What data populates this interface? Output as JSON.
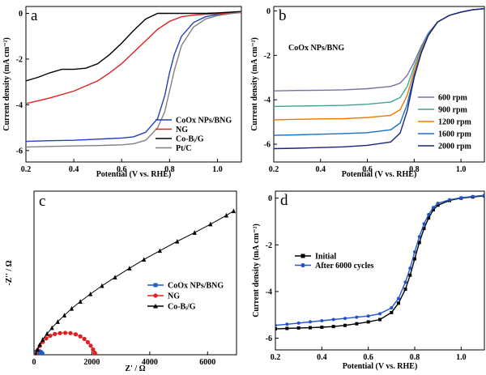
{
  "chart_data": [
    {
      "type": "line",
      "panel_label": "a",
      "xlabel": "Potential (V vs. RHE)",
      "ylabel": "Current density (mA cm⁻²)",
      "xlim": [
        0.2,
        1.1
      ],
      "ylim": [
        -6.5,
        0.3
      ],
      "xticks": [
        0.2,
        0.4,
        0.6,
        0.8,
        1.0
      ],
      "xtick_labels": [
        "0.2",
        "0.4",
        "0.6",
        "0.8",
        "1.0"
      ],
      "yticks": [
        0,
        -2,
        -4,
        -6
      ],
      "ytick_labels": [
        "0",
        "-2",
        "-4",
        "-6"
      ],
      "legend_position": "lower-right",
      "series": [
        {
          "name": "CoOx NPs/BNG",
          "color": "#1f3fbf",
          "x": [
            0.2,
            0.3,
            0.4,
            0.5,
            0.6,
            0.65,
            0.7,
            0.75,
            0.78,
            0.8,
            0.82,
            0.85,
            0.9,
            0.95,
            1.0,
            1.05,
            1.1
          ],
          "y": [
            -5.6,
            -5.57,
            -5.55,
            -5.5,
            -5.45,
            -5.4,
            -5.2,
            -4.6,
            -3.6,
            -2.6,
            -1.8,
            -1.0,
            -0.4,
            -0.15,
            -0.05,
            0.02,
            0.08
          ]
        },
        {
          "name": "NG",
          "color": "#e02020",
          "x": [
            0.2,
            0.3,
            0.4,
            0.5,
            0.55,
            0.6,
            0.65,
            0.7,
            0.75,
            0.8,
            0.85,
            0.9,
            0.95,
            1.0,
            1.05,
            1.1
          ],
          "y": [
            -3.95,
            -3.7,
            -3.4,
            -2.95,
            -2.6,
            -2.2,
            -1.7,
            -1.2,
            -0.7,
            -0.35,
            -0.15,
            -0.08,
            -0.04,
            -0.02,
            0.0,
            0.03
          ]
        },
        {
          "name": "Co-Bᵢ/G",
          "color": "#000000",
          "x": [
            0.2,
            0.25,
            0.3,
            0.35,
            0.4,
            0.45,
            0.5,
            0.55,
            0.6,
            0.65,
            0.7,
            0.75,
            0.8,
            0.85,
            0.9,
            0.95,
            1.0,
            1.05,
            1.1
          ],
          "y": [
            -2.95,
            -2.8,
            -2.6,
            -2.45,
            -2.45,
            -2.4,
            -2.2,
            -1.8,
            -1.3,
            -0.75,
            -0.25,
            0.0,
            0.0,
            0.0,
            0.0,
            0.0,
            0.02,
            0.05,
            0.08
          ]
        },
        {
          "name": "Pt/C",
          "color": "#808080",
          "x": [
            0.2,
            0.3,
            0.4,
            0.5,
            0.6,
            0.65,
            0.7,
            0.75,
            0.78,
            0.8,
            0.82,
            0.85,
            0.9,
            0.95,
            1.0,
            1.05,
            1.1
          ],
          "y": [
            -5.85,
            -5.82,
            -5.8,
            -5.78,
            -5.75,
            -5.7,
            -5.55,
            -5.0,
            -4.3,
            -3.4,
            -2.5,
            -1.4,
            -0.6,
            -0.25,
            -0.1,
            -0.02,
            0.05
          ]
        }
      ]
    },
    {
      "type": "line",
      "panel_label": "b",
      "annotation": "CoOx NPs/BNG",
      "xlabel": "Potential (V vs. RHE)",
      "ylabel": "Current density (mA cm⁻²)",
      "xlim": [
        0.2,
        1.1
      ],
      "ylim": [
        -6.8,
        0.2
      ],
      "xticks": [
        0.2,
        0.4,
        0.6,
        0.8,
        1.0
      ],
      "xtick_labels": [
        "0.2",
        "0.4",
        "0.6",
        "0.8",
        "1.0"
      ],
      "yticks": [
        0,
        -2,
        -4,
        -6
      ],
      "ytick_labels": [
        "0",
        "-2",
        "-4",
        "-6"
      ],
      "legend_position": "lower-right",
      "series": [
        {
          "name": "600 rpm",
          "color": "#7a6fa8",
          "x": [
            0.2,
            0.3,
            0.4,
            0.5,
            0.6,
            0.7,
            0.74,
            0.77,
            0.8,
            0.83,
            0.86,
            0.9,
            0.95,
            1.0,
            1.05,
            1.1
          ],
          "y": [
            -3.6,
            -3.58,
            -3.57,
            -3.55,
            -3.5,
            -3.4,
            -3.25,
            -2.9,
            -2.3,
            -1.6,
            -1.0,
            -0.5,
            -0.2,
            -0.05,
            0.05,
            0.1
          ]
        },
        {
          "name": "900 rpm",
          "color": "#3ea58f",
          "x": [
            0.2,
            0.3,
            0.4,
            0.5,
            0.6,
            0.7,
            0.74,
            0.77,
            0.8,
            0.83,
            0.86,
            0.9,
            0.95,
            1.0,
            1.05,
            1.1
          ],
          "y": [
            -4.3,
            -4.28,
            -4.27,
            -4.25,
            -4.2,
            -4.1,
            -3.9,
            -3.4,
            -2.5,
            -1.7,
            -1.05,
            -0.5,
            -0.2,
            -0.05,
            0.05,
            0.1
          ]
        },
        {
          "name": "1200 rpm",
          "color": "#f07800",
          "x": [
            0.2,
            0.3,
            0.4,
            0.5,
            0.6,
            0.7,
            0.74,
            0.77,
            0.8,
            0.83,
            0.86,
            0.9,
            0.95,
            1.0,
            1.05,
            1.1
          ],
          "y": [
            -4.9,
            -4.88,
            -4.86,
            -4.85,
            -4.8,
            -4.7,
            -4.45,
            -3.8,
            -2.7,
            -1.8,
            -1.1,
            -0.5,
            -0.2,
            -0.05,
            0.05,
            0.1
          ]
        },
        {
          "name": "1600 rpm",
          "color": "#1a6fc4",
          "x": [
            0.2,
            0.3,
            0.4,
            0.5,
            0.6,
            0.7,
            0.74,
            0.77,
            0.8,
            0.83,
            0.86,
            0.9,
            0.95,
            1.0,
            1.05,
            1.1
          ],
          "y": [
            -5.6,
            -5.58,
            -5.55,
            -5.52,
            -5.48,
            -5.35,
            -5.05,
            -4.2,
            -2.9,
            -1.9,
            -1.1,
            -0.5,
            -0.2,
            -0.05,
            0.05,
            0.1
          ]
        },
        {
          "name": "2000 rpm",
          "color": "#1a237e",
          "x": [
            0.2,
            0.3,
            0.4,
            0.5,
            0.6,
            0.7,
            0.74,
            0.77,
            0.8,
            0.83,
            0.86,
            0.9,
            0.95,
            1.0,
            1.05,
            1.1
          ],
          "y": [
            -6.2,
            -6.18,
            -6.15,
            -6.12,
            -6.05,
            -5.9,
            -5.5,
            -4.5,
            -3.0,
            -1.9,
            -1.1,
            -0.5,
            -0.2,
            -0.05,
            0.05,
            0.1
          ]
        }
      ]
    },
    {
      "type": "scatter",
      "panel_label": "c",
      "xlabel": "Z' / Ω",
      "ylabel": "-Z'' / Ω",
      "xlim": [
        0,
        7000
      ],
      "ylim": [
        0,
        5600
      ],
      "xticks": [
        0,
        2000,
        4000,
        6000
      ],
      "xtick_labels": [
        "0",
        "2000",
        "4000",
        "6000"
      ],
      "legend_position": "center",
      "series": [
        {
          "name": "CoOx NPs/BNG",
          "color": "#1f5fbf",
          "marker": "square",
          "x": [
            40,
            60,
            90,
            120,
            160,
            200,
            240,
            270,
            290
          ],
          "y": [
            0,
            50,
            90,
            110,
            115,
            100,
            75,
            40,
            0
          ]
        },
        {
          "name": "NG",
          "color": "#e02020",
          "marker": "circle",
          "x": [
            60,
            120,
            200,
            300,
            420,
            560,
            720,
            900,
            1080,
            1260,
            1440,
            1600,
            1740,
            1860,
            1960,
            2040,
            2100,
            2130
          ],
          "y": [
            0,
            150,
            300,
            440,
            560,
            650,
            710,
            740,
            750,
            740,
            700,
            630,
            540,
            430,
            310,
            180,
            70,
            0
          ]
        },
        {
          "name": "Co-Bᵢ/G",
          "color": "#000000",
          "marker": "triangle",
          "x": [
            60,
            120,
            200,
            300,
            450,
            620,
            820,
            1050,
            1300,
            1600,
            1950,
            2350,
            2800,
            3300,
            3800,
            4350,
            4950,
            5550,
            6100,
            6650,
            6900
          ],
          "y": [
            0,
            180,
            350,
            520,
            720,
            920,
            1130,
            1350,
            1580,
            1820,
            2080,
            2360,
            2650,
            2960,
            3260,
            3560,
            3880,
            4180,
            4470,
            4770,
            4920
          ]
        }
      ]
    },
    {
      "type": "line",
      "panel_label": "d",
      "xlabel": "Potential (V vs. RHE)",
      "ylabel": "Current density (mA cm⁻²)",
      "xlim": [
        0.2,
        1.1
      ],
      "ylim": [
        -6.5,
        0.3
      ],
      "xticks": [
        0.2,
        0.4,
        0.6,
        0.8,
        1.0
      ],
      "xtick_labels": [
        "0.2",
        "0.4",
        "0.6",
        "0.8",
        "1.0"
      ],
      "yticks": [
        0,
        -2,
        -4,
        -6
      ],
      "ytick_labels": [
        "0",
        "-2",
        "-4",
        "-6"
      ],
      "legend_position": "center-left",
      "series": [
        {
          "name": "Initial",
          "color": "#000000",
          "marker": "square",
          "x": [
            0.2,
            0.25,
            0.3,
            0.35,
            0.4,
            0.45,
            0.5,
            0.55,
            0.6,
            0.65,
            0.7,
            0.73,
            0.76,
            0.78,
            0.8,
            0.82,
            0.84,
            0.86,
            0.88,
            0.9,
            0.95,
            1.0,
            1.05,
            1.1
          ],
          "y": [
            -5.6,
            -5.58,
            -5.56,
            -5.55,
            -5.53,
            -5.5,
            -5.45,
            -5.38,
            -5.3,
            -5.2,
            -4.9,
            -4.5,
            -3.9,
            -3.3,
            -2.6,
            -1.9,
            -1.3,
            -0.85,
            -0.5,
            -0.3,
            -0.1,
            0.0,
            0.05,
            0.1
          ]
        },
        {
          "name": "After 6000 cycles",
          "color": "#2255cc",
          "marker": "circle",
          "x": [
            0.2,
            0.25,
            0.3,
            0.35,
            0.4,
            0.45,
            0.5,
            0.55,
            0.6,
            0.65,
            0.7,
            0.73,
            0.76,
            0.78,
            0.8,
            0.82,
            0.84,
            0.86,
            0.88,
            0.9,
            0.95,
            1.0,
            1.05,
            1.1
          ],
          "y": [
            -5.45,
            -5.4,
            -5.35,
            -5.3,
            -5.25,
            -5.2,
            -5.15,
            -5.1,
            -5.05,
            -4.95,
            -4.7,
            -4.3,
            -3.6,
            -3.0,
            -2.3,
            -1.65,
            -1.1,
            -0.7,
            -0.4,
            -0.22,
            -0.07,
            0.02,
            0.07,
            0.12
          ]
        }
      ]
    }
  ]
}
